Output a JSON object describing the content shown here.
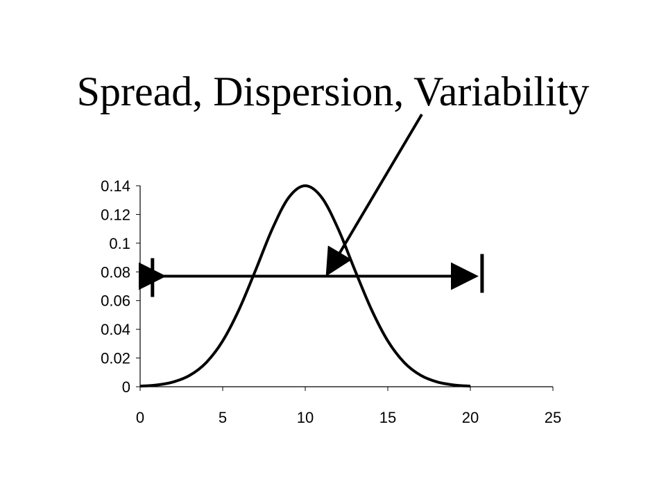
{
  "title": "Spread, Dispersion, Variability",
  "colors": {
    "line": "#000000",
    "background": "#ffffff"
  },
  "chart_data": {
    "type": "line",
    "title": "Spread, Dispersion, Variability",
    "xlabel": "",
    "ylabel": "",
    "xlim": [
      0,
      25
    ],
    "ylim": [
      0,
      0.14
    ],
    "x_ticks": [
      "0",
      "5",
      "10",
      "15",
      "20",
      "25"
    ],
    "y_ticks": [
      "0",
      "0.02",
      "0.04",
      "0.06",
      "0.08",
      "0.1",
      "0.12",
      "0.14"
    ],
    "grid": false,
    "legend": "none",
    "series": [
      {
        "x": [
          0,
          1,
          2,
          3,
          4,
          5,
          6,
          7,
          8,
          9,
          10,
          11,
          12,
          13,
          14,
          15,
          16,
          17,
          18,
          19,
          20
        ],
        "values": [
          0.0004,
          0.0012,
          0.0033,
          0.0079,
          0.0168,
          0.0319,
          0.054,
          0.0814,
          0.1098,
          0.1318,
          0.14,
          0.1318,
          0.1098,
          0.0814,
          0.054,
          0.0319,
          0.0168,
          0.0079,
          0.0033,
          0.0012,
          0.0004
        ]
      }
    ],
    "annotations": {
      "range_arrow": {
        "x_from": 1,
        "x_to": 20.5,
        "y": 0.077
      },
      "pointer_arrow": {
        "from_label": "Variability",
        "to": {
          "x": 11.5,
          "y": 0.085
        }
      }
    }
  }
}
